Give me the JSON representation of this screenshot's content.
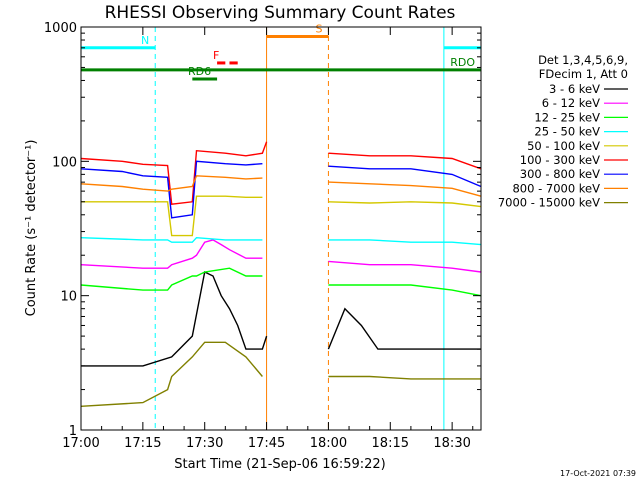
{
  "chart_data": {
    "type": "line",
    "title": "RHESSI Observing Summary Count Rates",
    "xlabel": "Start Time (21-Sep-06 16:59:22)",
    "ylabel": "Count Rate (s⁻¹ detector⁻¹)",
    "yscale": "log",
    "ylim": [
      1,
      1000
    ],
    "xlim_minutes": [
      0,
      97
    ],
    "x_ticks": [
      {
        "m": 0,
        "label": "17:00"
      },
      {
        "m": 15,
        "label": "17:15"
      },
      {
        "m": 30,
        "label": "17:30"
      },
      {
        "m": 45,
        "label": "17:45"
      },
      {
        "m": 60,
        "label": "18:00"
      },
      {
        "m": 75,
        "label": "18:15"
      },
      {
        "m": 90,
        "label": "18:30"
      }
    ],
    "y_ticks": [
      {
        "v": 1,
        "label": "1"
      },
      {
        "v": 10,
        "label": "10"
      },
      {
        "v": 100,
        "label": "100"
      },
      {
        "v": 1000,
        "label": "1000"
      }
    ],
    "legend_header": [
      "Det 1,3,4,5,6,9,",
      "FDecim 1, Att 0"
    ],
    "legend_position": "right",
    "data_gap_minutes": [
      45,
      60
    ],
    "series": [
      {
        "name": "3 - 6 keV",
        "color": "#000000",
        "points": [
          [
            0,
            3
          ],
          [
            15,
            3
          ],
          [
            22,
            3.5
          ],
          [
            27,
            5
          ],
          [
            30,
            15
          ],
          [
            32,
            14
          ],
          [
            34,
            10
          ],
          [
            36,
            8
          ],
          [
            38,
            6
          ],
          [
            40,
            4
          ],
          [
            44,
            4
          ],
          [
            45,
            5
          ],
          [
            60,
            4
          ],
          [
            64,
            8
          ],
          [
            68,
            6
          ],
          [
            72,
            4
          ],
          [
            80,
            4
          ],
          [
            90,
            4
          ],
          [
            97,
            4
          ]
        ]
      },
      {
        "name": "6 - 12 keV",
        "color": "#ff00ff",
        "points": [
          [
            0,
            17
          ],
          [
            15,
            16
          ],
          [
            21,
            16
          ],
          [
            22,
            17
          ],
          [
            27,
            19
          ],
          [
            28,
            20
          ],
          [
            30,
            25
          ],
          [
            32,
            26
          ],
          [
            34,
            24
          ],
          [
            36,
            22
          ],
          [
            40,
            19
          ],
          [
            44,
            19
          ],
          [
            60,
            18
          ],
          [
            70,
            17
          ],
          [
            80,
            17
          ],
          [
            90,
            16
          ],
          [
            97,
            15
          ]
        ]
      },
      {
        "name": "12 - 25 keV",
        "color": "#00ff00",
        "points": [
          [
            0,
            12
          ],
          [
            15,
            11
          ],
          [
            21,
            11
          ],
          [
            22,
            12
          ],
          [
            27,
            14
          ],
          [
            28,
            14
          ],
          [
            30,
            15
          ],
          [
            36,
            16
          ],
          [
            40,
            14
          ],
          [
            44,
            14
          ],
          [
            60,
            12
          ],
          [
            70,
            12
          ],
          [
            80,
            12
          ],
          [
            90,
            11
          ],
          [
            97,
            10
          ]
        ]
      },
      {
        "name": "25 - 50 keV",
        "color": "#00ffff",
        "points": [
          [
            0,
            27
          ],
          [
            15,
            26
          ],
          [
            21,
            26
          ],
          [
            22,
            25
          ],
          [
            27,
            25
          ],
          [
            28,
            27
          ],
          [
            35,
            26
          ],
          [
            40,
            26
          ],
          [
            44,
            26
          ],
          [
            60,
            26
          ],
          [
            70,
            26
          ],
          [
            80,
            25
          ],
          [
            90,
            25
          ],
          [
            97,
            24
          ]
        ]
      },
      {
        "name": "50 - 100 keV",
        "color": "#d4c800",
        "points": [
          [
            0,
            50
          ],
          [
            15,
            50
          ],
          [
            21,
            50
          ],
          [
            22,
            28
          ],
          [
            27,
            28
          ],
          [
            28,
            55
          ],
          [
            35,
            55
          ],
          [
            40,
            54
          ],
          [
            44,
            54
          ],
          [
            60,
            50
          ],
          [
            70,
            49
          ],
          [
            80,
            50
          ],
          [
            90,
            49
          ],
          [
            97,
            46
          ]
        ]
      },
      {
        "name": "100 - 300 keV",
        "color": "#ff0000",
        "points": [
          [
            0,
            105
          ],
          [
            10,
            100
          ],
          [
            15,
            95
          ],
          [
            21,
            93
          ],
          [
            22,
            48
          ],
          [
            27,
            50
          ],
          [
            28,
            120
          ],
          [
            35,
            115
          ],
          [
            40,
            110
          ],
          [
            44,
            115
          ],
          [
            45,
            140
          ],
          [
            60,
            115
          ],
          [
            70,
            110
          ],
          [
            80,
            110
          ],
          [
            90,
            105
          ],
          [
            97,
            88
          ]
        ]
      },
      {
        "name": "300 - 800 keV",
        "color": "#0000ff",
        "points": [
          [
            0,
            88
          ],
          [
            10,
            84
          ],
          [
            15,
            78
          ],
          [
            21,
            76
          ],
          [
            22,
            38
          ],
          [
            27,
            40
          ],
          [
            28,
            100
          ],
          [
            35,
            96
          ],
          [
            40,
            94
          ],
          [
            44,
            96
          ],
          [
            60,
            92
          ],
          [
            70,
            88
          ],
          [
            80,
            88
          ],
          [
            90,
            80
          ],
          [
            97,
            65
          ]
        ]
      },
      {
        "name": "800 - 7000 keV",
        "color": "#ff8000",
        "points": [
          [
            0,
            68
          ],
          [
            10,
            65
          ],
          [
            15,
            62
          ],
          [
            21,
            60
          ],
          [
            22,
            62
          ],
          [
            27,
            65
          ],
          [
            28,
            78
          ],
          [
            35,
            76
          ],
          [
            40,
            74
          ],
          [
            44,
            75
          ],
          [
            60,
            70
          ],
          [
            70,
            68
          ],
          [
            80,
            66
          ],
          [
            90,
            63
          ],
          [
            97,
            55
          ]
        ]
      },
      {
        "name": "7000 - 15000 keV",
        "color": "#808000",
        "points": [
          [
            0,
            1.5
          ],
          [
            15,
            1.6
          ],
          [
            21,
            2
          ],
          [
            22,
            2.5
          ],
          [
            27,
            3.5
          ],
          [
            30,
            4.5
          ],
          [
            35,
            4.5
          ],
          [
            40,
            3.5
          ],
          [
            44,
            2.5
          ],
          [
            60,
            2.5
          ],
          [
            70,
            2.5
          ],
          [
            80,
            2.4
          ],
          [
            90,
            2.4
          ],
          [
            97,
            2.4
          ]
        ]
      }
    ],
    "flags": [
      {
        "label": "N",
        "color": "#00ffff",
        "segments": [
          [
            0,
            18
          ],
          [
            88,
            97
          ]
        ],
        "level": 700
      },
      {
        "label": "S",
        "color": "#ff8000",
        "segments": [
          [
            45,
            60
          ]
        ],
        "level": 850
      },
      {
        "label": "F",
        "color": "#ff0000",
        "segments": [
          [
            33,
            35
          ],
          [
            36,
            38
          ]
        ],
        "level": 540
      },
      {
        "label": "RDO",
        "color": "#008000",
        "segments": [
          [
            0,
            97
          ]
        ],
        "level": 480
      },
      {
        "label": "RD6",
        "color": "#008000",
        "segments": [
          [
            27,
            33
          ]
        ],
        "level": 410
      }
    ],
    "vertical_markers": [
      {
        "m": 0,
        "color": "#00ffff",
        "style": "solid"
      },
      {
        "m": 18,
        "color": "#00ffff",
        "style": "dashed"
      },
      {
        "m": 45,
        "color": "#ff8000",
        "style": "solid"
      },
      {
        "m": 60,
        "color": "#ff8000",
        "style": "dashed"
      },
      {
        "m": 88,
        "color": "#00ffff",
        "style": "solid"
      },
      {
        "m": 97,
        "color": "#00ffff",
        "style": "dashed"
      }
    ]
  },
  "footer_stamp": "17-Oct-2021 07:39"
}
